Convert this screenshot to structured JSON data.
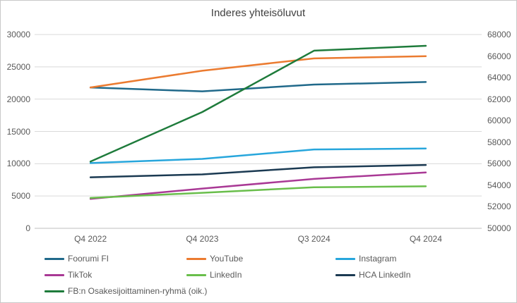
{
  "title": "Inderes yhteisöluvut",
  "chart_data": {
    "type": "line",
    "title": "Inderes yhteisöluvut",
    "categories": [
      "Q4 2022",
      "Q4 2023",
      "Q3 2024",
      "Q4 2024"
    ],
    "series": [
      {
        "name": "Foorumi FI",
        "axis": "left",
        "color": "#20698A",
        "values": [
          21800,
          21200,
          22250,
          22650
        ]
      },
      {
        "name": "YouTube",
        "axis": "left",
        "color": "#EB7B30",
        "values": [
          21800,
          24400,
          26300,
          26650
        ]
      },
      {
        "name": "Instagram",
        "axis": "left",
        "color": "#27A6DC",
        "values": [
          10100,
          10750,
          12200,
          12350
        ]
      },
      {
        "name": "TikTok",
        "axis": "left",
        "color": "#A93995",
        "values": [
          4550,
          6150,
          7650,
          8650
        ]
      },
      {
        "name": "LinkedIn",
        "axis": "left",
        "color": "#69BE4B",
        "values": [
          4700,
          5500,
          6350,
          6500
        ]
      },
      {
        "name": "HCA LinkedIn",
        "axis": "left",
        "color": "#1B3A52",
        "values": [
          7900,
          8350,
          9450,
          9800
        ]
      },
      {
        "name": "FB:n Osakesijoittaminen-ryhmä (oik.)",
        "axis": "right",
        "color": "#1E7B3B",
        "values": [
          56200,
          60800,
          66500,
          66950
        ]
      }
    ],
    "left_axis": {
      "min": 0,
      "max": 30000,
      "step": 5000,
      "tick_labels": [
        "0",
        "5000",
        "10000",
        "15000",
        "20000",
        "25000",
        "30000"
      ]
    },
    "right_axis": {
      "min": 50000,
      "max": 68000,
      "step": 2000,
      "tick_labels": [
        "50000",
        "52000",
        "54000",
        "56000",
        "58000",
        "60000",
        "62000",
        "64000",
        "66000",
        "68000"
      ]
    },
    "grid": "horizontal-from-left-axis",
    "legend_position": "bottom",
    "colors": {
      "gridline": "#D9D9D9",
      "axis_line": "#BFBFBF",
      "tick_text": "#595959",
      "title_text": "#404040"
    }
  }
}
